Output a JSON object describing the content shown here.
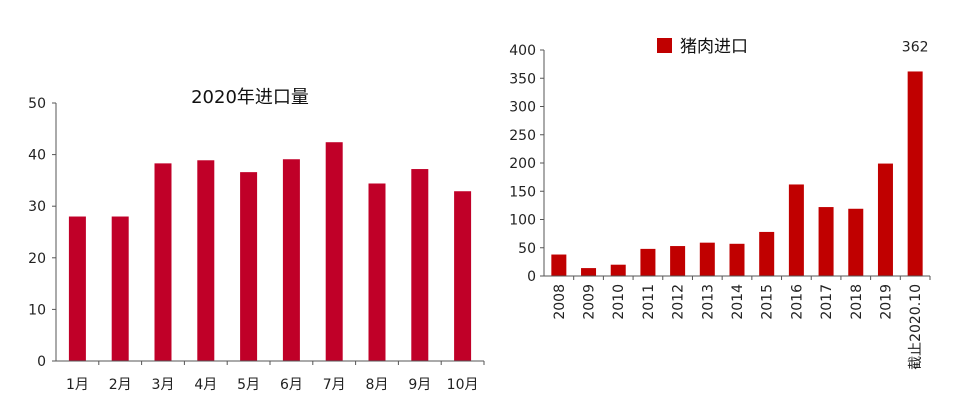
{
  "chart_data": [
    {
      "type": "bar",
      "title": "2020年进口量",
      "categories": [
        "1月",
        "2月",
        "3月",
        "4月",
        "5月",
        "6月",
        "7月",
        "8月",
        "9月",
        "10月"
      ],
      "values": [
        28,
        28,
        38.3,
        38.9,
        36.6,
        39.1,
        42.4,
        34.4,
        37.2,
        32.9
      ],
      "ylim": [
        0,
        50
      ],
      "yticks": [
        "0",
        "10",
        "20",
        "30",
        "40",
        "50"
      ],
      "grid": false,
      "color": "#c00028"
    },
    {
      "type": "bar",
      "legend": [
        "猪肉进口"
      ],
      "legend_position": "top",
      "categories": [
        "2008",
        "2009",
        "2010",
        "2011",
        "2012",
        "2013",
        "2014",
        "2015",
        "2016",
        "2017",
        "2018",
        "2019",
        "截止2020.10"
      ],
      "values": [
        38,
        14,
        20,
        48,
        53,
        59,
        57,
        78,
        162,
        122,
        119,
        199,
        362
      ],
      "data_labels": [
        {
          "index": 12,
          "text": "362"
        }
      ],
      "ylim": [
        0,
        400
      ],
      "yticks": [
        "0",
        "50",
        "100",
        "150",
        "200",
        "250",
        "300",
        "350",
        "400"
      ],
      "grid": false,
      "color": "#c00000"
    }
  ]
}
